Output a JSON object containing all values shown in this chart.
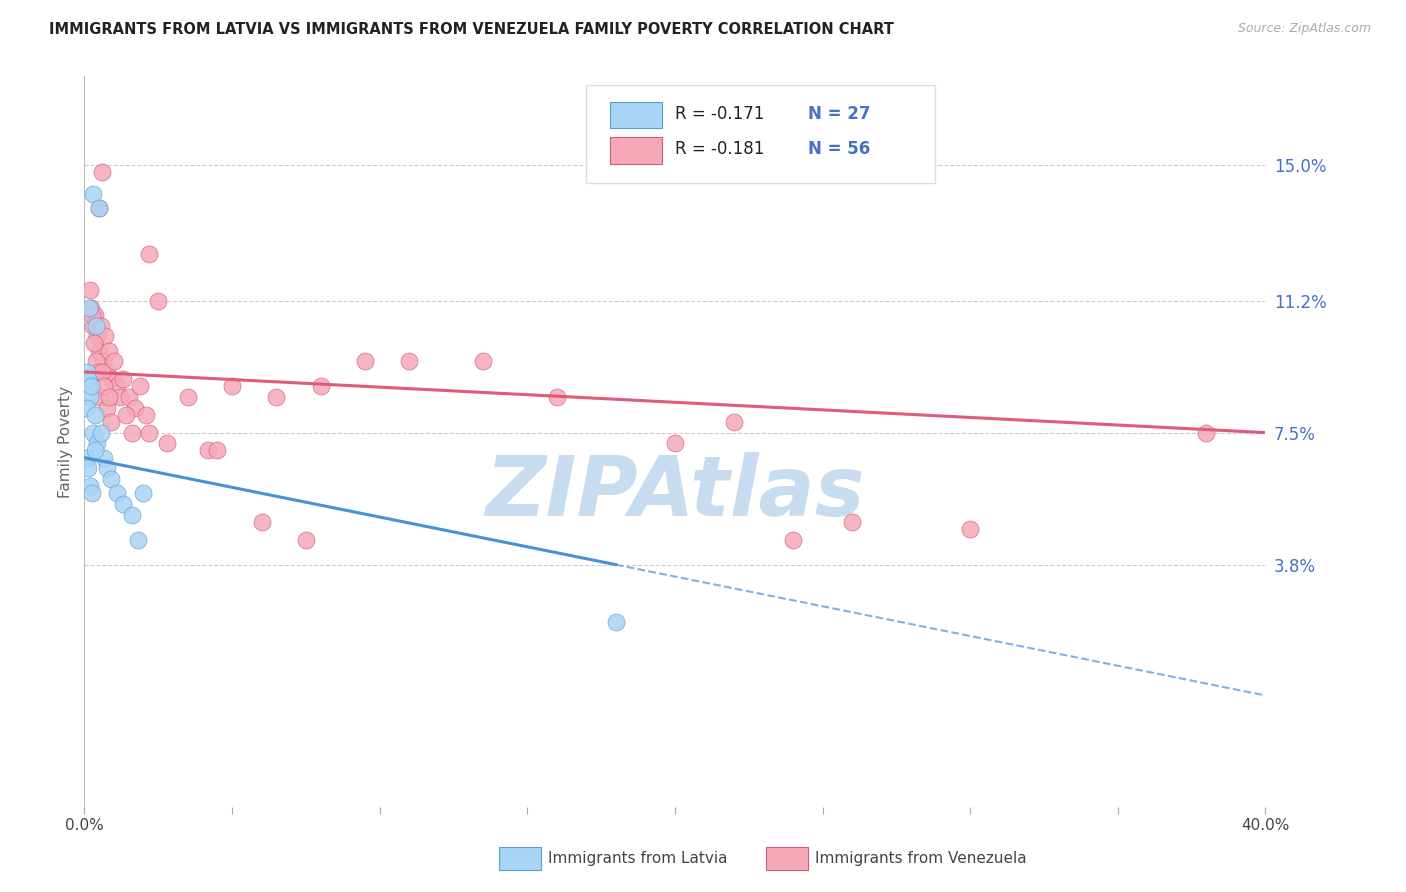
{
  "title": "IMMIGRANTS FROM LATVIA VS IMMIGRANTS FROM VENEZUELA FAMILY POVERTY CORRELATION CHART",
  "source": "Source: ZipAtlas.com",
  "ylabel": "Family Poverty",
  "ytick_vals": [
    0.0,
    3.8,
    7.5,
    11.2,
    15.0
  ],
  "ytick_labels": [
    "",
    "3.8%",
    "7.5%",
    "11.2%",
    "15.0%"
  ],
  "xlim": [
    0.0,
    40.0
  ],
  "ylim": [
    -3.0,
    17.5
  ],
  "latvia_fill": "#A8D4F5",
  "latvia_edge": "#5A9FD4",
  "venezuela_fill": "#F5A8B8",
  "venezuela_edge": "#D45A7A",
  "latvia_line_color": "#4A90D9",
  "venezuela_line_color": "#E05A7A",
  "latvia_R": -0.171,
  "latvia_N": 27,
  "venezuela_R": -0.181,
  "venezuela_N": 56,
  "watermark": "ZIPAtlas",
  "watermark_color": "#C8DCF0",
  "latvia_x": [
    0.3,
    0.5,
    0.15,
    0.4,
    0.08,
    0.12,
    0.18,
    0.22,
    0.1,
    0.35,
    0.28,
    0.42,
    0.55,
    0.65,
    0.75,
    0.9,
    1.1,
    1.3,
    1.6,
    2.0,
    0.08,
    0.12,
    0.18,
    0.25,
    0.35,
    1.8,
    18.0
  ],
  "latvia_y": [
    14.2,
    13.8,
    11.0,
    10.5,
    9.2,
    9.0,
    8.5,
    8.8,
    8.2,
    8.0,
    7.5,
    7.2,
    7.5,
    6.8,
    6.5,
    6.2,
    5.8,
    5.5,
    5.2,
    5.8,
    6.8,
    6.5,
    6.0,
    5.8,
    7.0,
    4.5,
    2.2
  ],
  "venezuela_x": [
    0.5,
    0.6,
    2.2,
    2.5,
    0.18,
    0.22,
    0.28,
    0.35,
    0.42,
    0.48,
    0.55,
    0.62,
    0.7,
    0.78,
    0.85,
    0.92,
    1.0,
    1.1,
    1.2,
    1.3,
    1.5,
    1.7,
    1.9,
    2.1,
    0.25,
    0.32,
    0.38,
    0.45,
    0.52,
    0.6,
    0.68,
    0.75,
    0.82,
    0.9,
    1.4,
    1.6,
    2.8,
    3.5,
    4.2,
    5.0,
    6.5,
    8.0,
    9.5,
    11.0,
    13.5,
    16.0,
    20.0,
    22.0,
    24.0,
    26.0,
    2.2,
    4.5,
    6.0,
    7.5,
    30.0,
    38.0
  ],
  "venezuela_y": [
    13.8,
    14.8,
    12.5,
    11.2,
    11.5,
    11.0,
    10.5,
    10.8,
    10.2,
    9.8,
    10.5,
    9.5,
    10.2,
    9.2,
    9.8,
    9.0,
    9.5,
    8.8,
    8.5,
    9.0,
    8.5,
    8.2,
    8.8,
    8.0,
    10.8,
    10.0,
    9.5,
    9.2,
    8.5,
    9.2,
    8.8,
    8.2,
    8.5,
    7.8,
    8.0,
    7.5,
    7.2,
    8.5,
    7.0,
    8.8,
    8.5,
    8.8,
    9.5,
    9.5,
    9.5,
    8.5,
    7.2,
    7.8,
    4.5,
    5.0,
    7.5,
    7.0,
    5.0,
    4.5,
    4.8,
    7.5
  ],
  "lv_line_x0": 0.0,
  "lv_line_y0": 6.8,
  "lv_line_x1": 18.0,
  "lv_line_y1": 3.8,
  "vz_line_x0": 0.0,
  "vz_line_y0": 9.2,
  "vz_line_x1": 40.0,
  "vz_line_y1": 7.5
}
